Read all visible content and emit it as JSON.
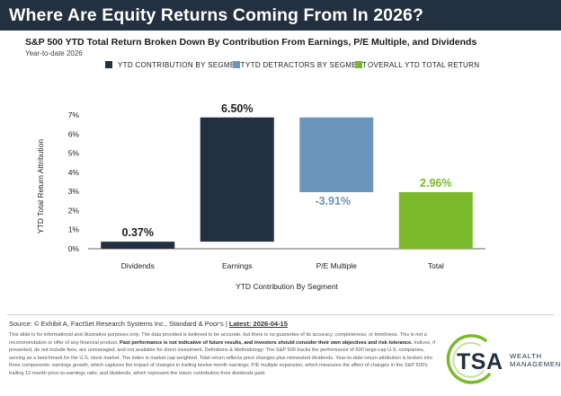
{
  "header": {
    "title": "Where Are Equity Returns Coming From In 2026?"
  },
  "subtitle": "S&P 500 YTD Total Return Broken Down By Contribution From Earnings, P/E Multiple, and Dividends",
  "period": "Year-to-date 2026",
  "legend": [
    {
      "label": "YTD CONTRIBUTION BY SEGMENT",
      "color": "#233040"
    },
    {
      "label": "YTD DETRACTORS BY SEGMENT",
      "color": "#6b95bd"
    },
    {
      "label": "OVERALL YTD TOTAL RETURN",
      "color": "#7ab929"
    }
  ],
  "chart_data": {
    "type": "bar",
    "subtype": "waterfall",
    "categories": [
      "Dividends",
      "Earnings",
      "P/E Multiple",
      "Total"
    ],
    "values": [
      0.37,
      6.5,
      -3.91,
      2.96
    ],
    "data_labels": [
      "0.37%",
      "6.50%",
      "-3.91%",
      "2.96%"
    ],
    "roles": [
      "contribution",
      "contribution",
      "detractor",
      "total"
    ],
    "xlabel": "YTD Contribution By Segment",
    "ylabel": "YTD Total Return Attribution",
    "ylim": [
      0,
      7
    ],
    "yticks": [
      0,
      1,
      2,
      3,
      4,
      5,
      6,
      7
    ],
    "ytick_labels": [
      "0%",
      "1%",
      "2%",
      "3%",
      "4%",
      "5%",
      "6%",
      "7%"
    ],
    "grid": false,
    "legend_position": "top"
  },
  "footer": {
    "source": "Source: © Exhibit A, FactSet Research Systems Inc., Standard & Poor's |",
    "latest": "Latest: 2026-04-15",
    "disclaimer_intro": "This slide is for informational and illustrative purposes only. The data provided is believed to be accurate, but there is no guarantee of its accuracy, completeness, or timeliness. This is not a recommendation or offer of any financial product.",
    "disclaimer_bold": "Past performance is not indicative of future results, and investors should consider their own objectives and risk tolerance.",
    "disclaimer_rest": "Indices, if presented, do not include fees, are unmanaged, and not available for direct investment. Definitions & Methodology: The S&P 500 tracks the performance of 500 large-cap U.S. companies, serving as a benchmark for the U.S. stock market. The index is market cap weighted. Total return reflects price changes plus reinvested dividends. Year-to-date return attribution is broken into three components: earnings growth, which captures the impact of changes in trailing twelve-month earnings; P/E multiple expansion, which measures the effect of changes in the S&P 500's trailing 12-month price-to-earnings ratio; and dividends, which represent the return contribution from dividends paid."
  },
  "logo": {
    "mark": "TSA",
    "line1": "WEALTH",
    "line2": "MANAGEMENT"
  }
}
